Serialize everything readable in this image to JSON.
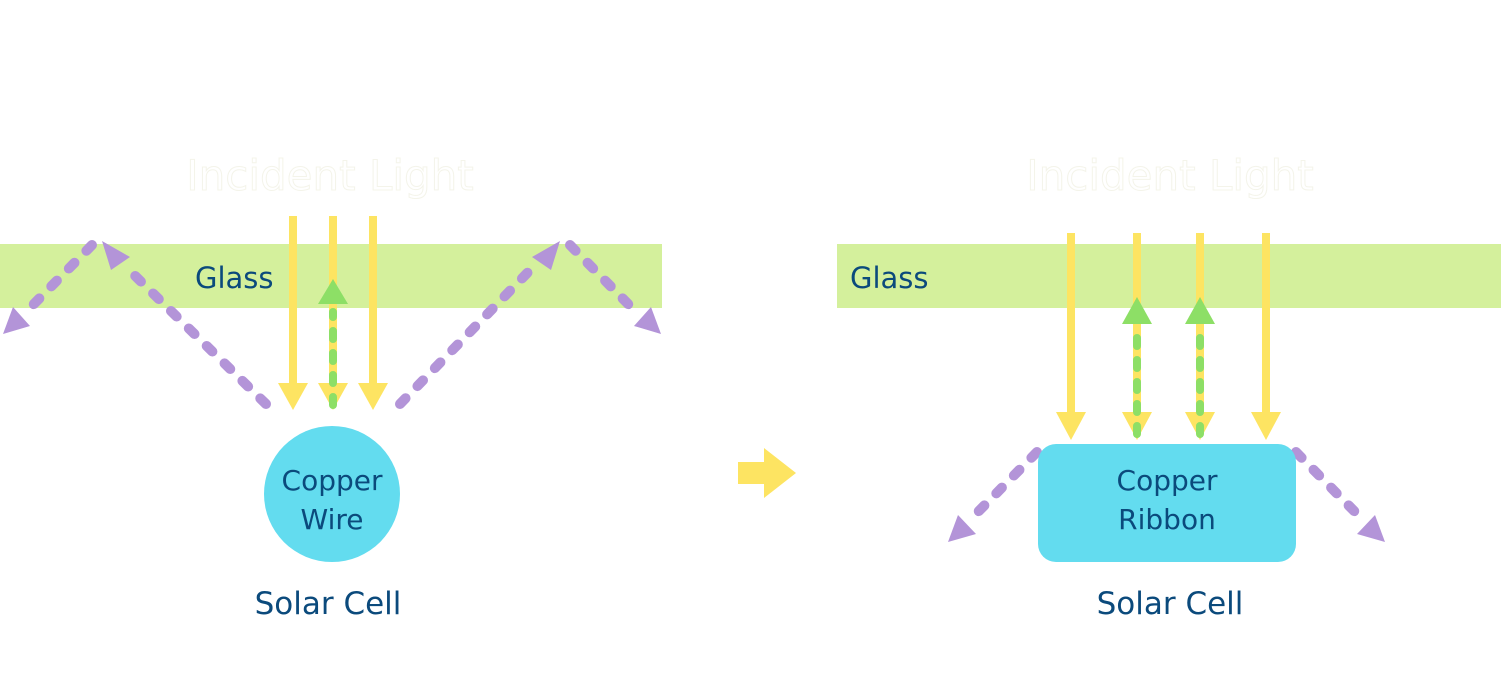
{
  "colors": {
    "glass": "#d4f09c",
    "incident_light": "#fde462",
    "reflected_back": "#8ddf66",
    "redirected": "#b394d8",
    "conductor": "#63dcef",
    "text": "#0b4a7c",
    "transition_arrow": "#fde462"
  },
  "left_panel": {
    "incident_label": "Incident Light",
    "glass_label": "Glass",
    "conductor_label_line1": "Copper",
    "conductor_label_line2": "Wire",
    "cell_label": "Solar Cell"
  },
  "right_panel": {
    "incident_label": "Incident Light",
    "glass_label": "Glass",
    "conductor_label_line1": "Copper",
    "conductor_label_line2": "Ribbon",
    "cell_label": "Solar Cell"
  },
  "transition_icon": "right-arrow-icon"
}
